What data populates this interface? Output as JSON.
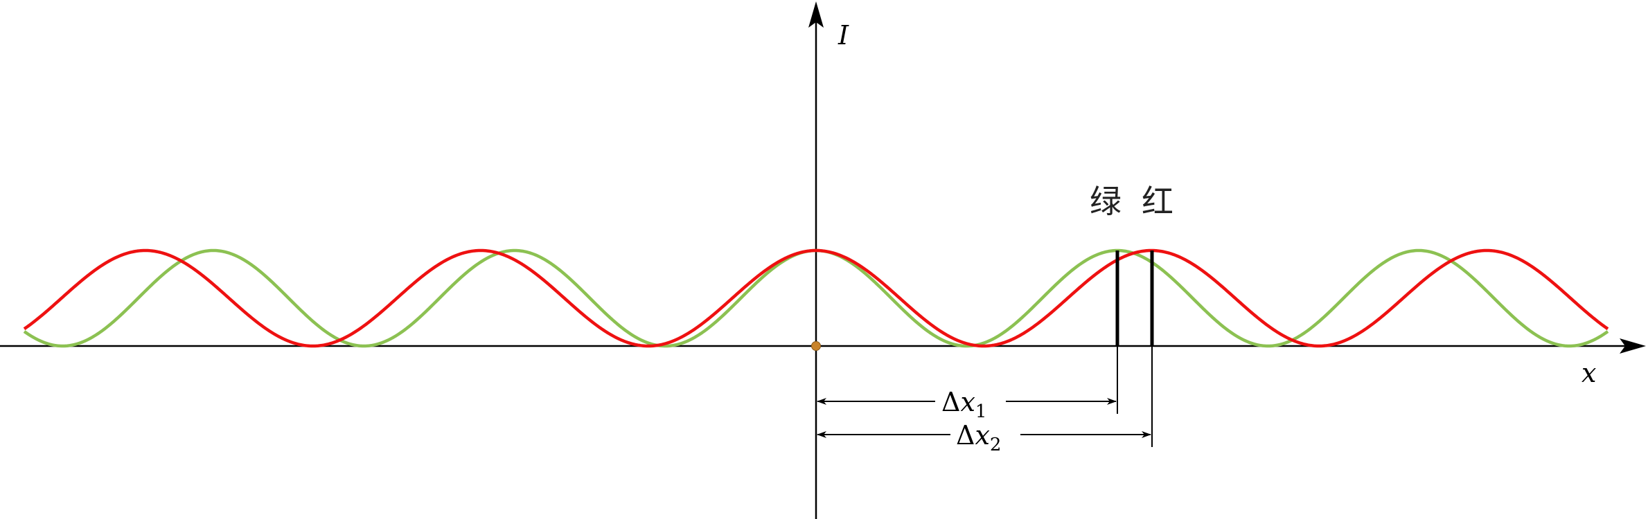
{
  "axes": {
    "y_label": "I",
    "x_label": "x"
  },
  "labels": {
    "green": "绿",
    "red": "红"
  },
  "measurements": {
    "dx1": {
      "delta": "Δ",
      "var": "x",
      "sub": "1"
    },
    "dx2": {
      "delta": "Δ",
      "var": "x",
      "sub": "2"
    }
  },
  "colors": {
    "green": "#8cc152",
    "red": "#ee1111",
    "axis": "#000000",
    "origin_dot": "#c8832a"
  },
  "chart_data": {
    "type": "line",
    "series": [
      {
        "name": "绿",
        "period": 1.0,
        "phase_peak_at": 0
      },
      {
        "name": "红",
        "period": 1.113,
        "phase_peak_at": 0
      }
    ]
  }
}
